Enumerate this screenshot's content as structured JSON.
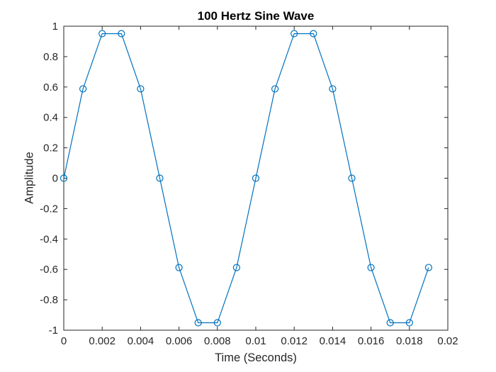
{
  "figure": {
    "background_color": "#ffffff"
  },
  "chart_data": {
    "type": "line",
    "title": "100 Hertz Sine Wave",
    "xlabel": "Time (Seconds)",
    "ylabel": "Amplitude",
    "x": [
      0,
      0.001,
      0.002,
      0.003,
      0.004,
      0.005,
      0.006,
      0.007,
      0.008,
      0.009,
      0.01,
      0.011,
      0.012,
      0.013,
      0.014,
      0.015,
      0.016,
      0.017,
      0.018,
      0.019
    ],
    "y": [
      0,
      0.5878,
      0.9511,
      0.9511,
      0.5878,
      0,
      -0.5878,
      -0.9511,
      -0.9511,
      -0.5878,
      0,
      0.5878,
      0.9511,
      0.9511,
      0.5878,
      0,
      -0.5878,
      -0.9511,
      -0.9511,
      -0.5878
    ],
    "xlim": [
      0,
      0.02
    ],
    "ylim": [
      -1,
      1
    ],
    "xtick_labels": [
      "0",
      "0.002",
      "0.004",
      "0.006",
      "0.008",
      "0.01",
      "0.012",
      "0.014",
      "0.016",
      "0.018",
      "0.02"
    ],
    "ytick_labels": [
      "1",
      "0.8",
      "0.6",
      "0.4",
      "0.2",
      "0",
      "-0.2",
      "-0.4",
      "-0.6",
      "-0.8",
      "-1"
    ],
    "grid": false,
    "legend": null,
    "marker": "open-circle",
    "line_color": "#0072BD",
    "axis_color": "#262626",
    "tick_label_color": "#262626",
    "title_color": "#000000",
    "tick_direction": "in",
    "box": true
  }
}
